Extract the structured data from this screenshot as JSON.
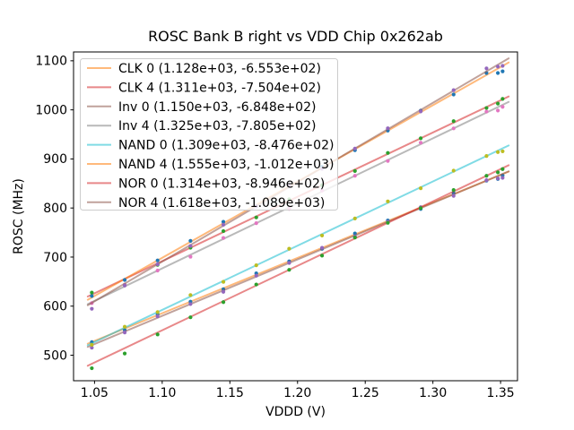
{
  "chart_data": {
    "type": "scatter",
    "title": "ROSC Bank B right vs VDD Chip 0x262ab",
    "xlabel": "VDDD (V)",
    "ylabel": "ROSC (MHz)",
    "xlim": [
      1.0345,
      1.3625
    ],
    "ylim": [
      448,
      1118
    ],
    "x_ticks": [
      1.05,
      1.1,
      1.15,
      1.2,
      1.25,
      1.3,
      1.35
    ],
    "x_tick_labels": [
      "1.05",
      "1.10",
      "1.15",
      "1.20",
      "1.25",
      "1.30",
      "1.35"
    ],
    "y_ticks": [
      500,
      600,
      700,
      800,
      900,
      1000,
      1100
    ],
    "y_tick_labels": [
      "500",
      "600",
      "700",
      "800",
      "900",
      "1000",
      "1100"
    ],
    "grid": false,
    "legend_position": "upper left",
    "line_alpha": 0.55,
    "fit_range": [
      1.045,
      1.356
    ],
    "voltages": [
      1.048,
      1.0723,
      1.0966,
      1.1209,
      1.1452,
      1.1695,
      1.1938,
      1.2181,
      1.2424,
      1.2667,
      1.291,
      1.3153,
      1.3396,
      1.348,
      1.3515
    ],
    "series": [
      {
        "name": "CLK 0",
        "legend_label": "CLK 0 (1.128e+03, -6.553e+02)",
        "slope": 1128,
        "intercept": -655.3,
        "line_color": "#ff7f0e",
        "marker_color": "#1f77b4",
        "residuals": [
          0,
          -3,
          2,
          0,
          -2,
          3,
          0,
          -2,
          2,
          1,
          -3,
          2,
          0,
          -6,
          -3
        ]
      },
      {
        "name": "CLK 4",
        "legend_label": "CLK 4 (1.311e+03, -7.504e+02)",
        "slope": 1311,
        "intercept": -750.4,
        "line_color": "#d62728",
        "marker_color": "#2ca02c",
        "residuals": [
          4,
          -12,
          -3,
          0,
          2,
          -2,
          3,
          0,
          -3,
          2,
          0,
          3,
          -2,
          -4,
          1
        ]
      },
      {
        "name": "Inv 0",
        "legend_label": "Inv 0 (1.150e+03, -6.848e+02)",
        "slope": 1150,
        "intercept": -684.8,
        "line_color": "#8c564b",
        "marker_color": "#9467bd",
        "residuals": [
          -5,
          -2,
          3,
          0,
          -3,
          2,
          0,
          3,
          -2,
          0,
          2,
          -3,
          1,
          -5,
          -8
        ]
      },
      {
        "name": "Inv 4",
        "legend_label": "Inv 4 (1.325e+03, -7.805e+02)",
        "slope": 1325,
        "intercept": -780.5,
        "line_color": "#7f7f7f",
        "marker_color": "#e377c2",
        "residuals": [
          -2,
          3,
          0,
          -4,
          2,
          0,
          -3,
          2,
          0,
          -2,
          3,
          0,
          2,
          -7,
          -4
        ]
      },
      {
        "name": "NAND 0",
        "legend_label": "NAND 0 (1.309e+03, -8.476e+02)",
        "slope": 1309,
        "intercept": -847.6,
        "line_color": "#17becf",
        "marker_color": "#bcbd22",
        "residuals": [
          -3,
          2,
          0,
          3,
          -2,
          0,
          2,
          -3,
          0,
          3,
          -2,
          2,
          0,
          -3,
          -6
        ]
      },
      {
        "name": "NAND 4",
        "legend_label": "NAND 4 (1.555e+03, -1.012e+03)",
        "slope": 1555,
        "intercept": -1012,
        "line_color": "#ff7f0e",
        "marker_color": "#1f77b4",
        "residuals": [
          3,
          -2,
          0,
          2,
          3,
          -3,
          0,
          2,
          -2,
          0,
          3,
          -2,
          4,
          -9,
          -11
        ]
      },
      {
        "name": "NOR 0",
        "legend_label": "NOR 0 (1.314e+03, -8.946e+02)",
        "slope": 1314,
        "intercept": -894.6,
        "line_color": "#d62728",
        "marker_color": "#2ca02c",
        "residuals": [
          -9,
          -11,
          -4,
          -1,
          -2,
          2,
          0,
          -3,
          2,
          0,
          -2,
          3,
          0,
          -4,
          -2
        ]
      },
      {
        "name": "NOR 4",
        "legend_label": "NOR 4 (1.618e+03, -1.089e+03)",
        "slope": 1618,
        "intercept": -1089,
        "line_color": "#8c564b",
        "marker_color": "#9467bd",
        "residuals": [
          -12,
          -4,
          0,
          -2,
          2,
          0,
          3,
          -2,
          0,
          2,
          -3,
          1,
          6,
          -4,
          -8
        ]
      }
    ],
    "style": {
      "spine_color": "#000000",
      "tick_color": "#000000",
      "legend_border_color": "#cccccc",
      "legend_bg_color": "#ffffff",
      "legend_bg_alpha": 0.8,
      "background_color": "#ffffff"
    }
  }
}
